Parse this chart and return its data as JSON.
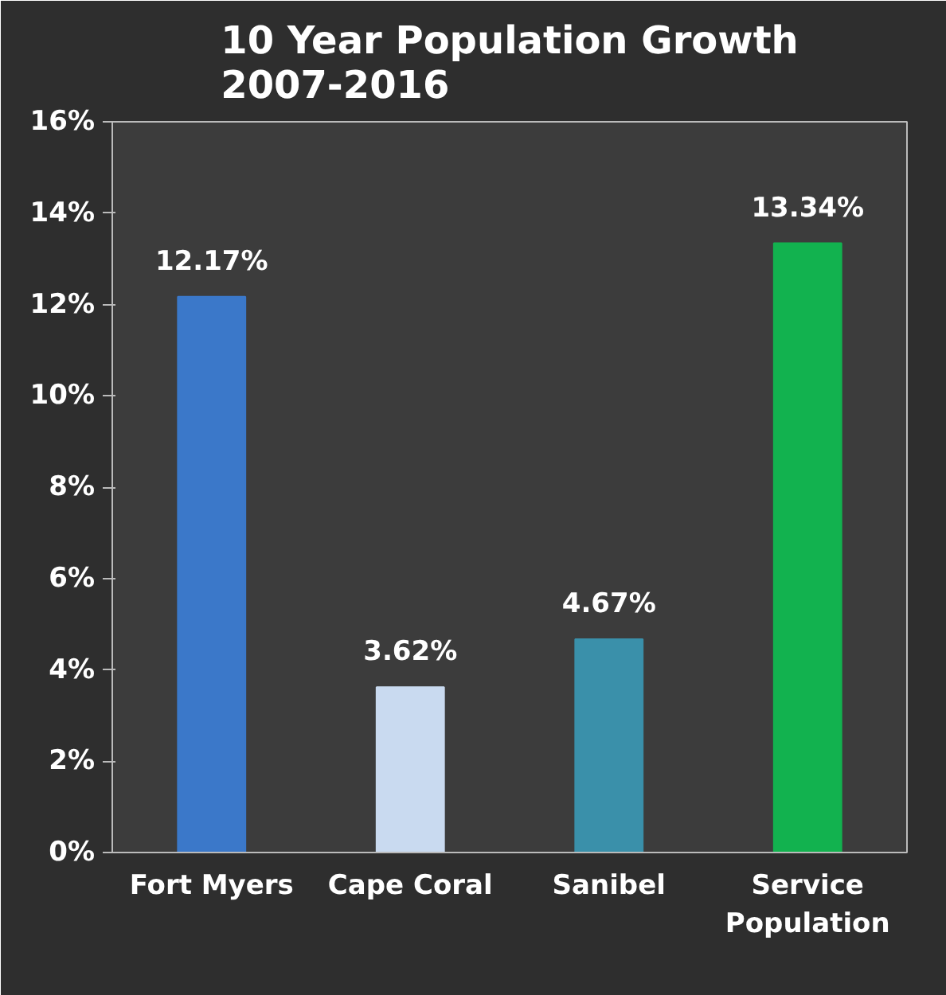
{
  "chart_data": {
    "type": "bar",
    "title": "10 Year Population Growth 2007-2016",
    "categories": [
      "Fort Myers",
      "Cape Coral",
      "Sanibel",
      "Service Population"
    ],
    "values": [
      12.17,
      3.62,
      4.67,
      13.34
    ],
    "colors": [
      "#3b78c9",
      "#c9daf0",
      "#3a90aa",
      "#12b24f"
    ],
    "value_labels": [
      "12.17%",
      "3.62%",
      "4.67%",
      "13.34%"
    ],
    "ylim": [
      0,
      16
    ],
    "yticks": [
      {
        "value": 0,
        "label": "0%"
      },
      {
        "value": 2,
        "label": "2%"
      },
      {
        "value": 4,
        "label": "4%"
      },
      {
        "value": 6,
        "label": "6%"
      },
      {
        "value": 8,
        "label": "8%"
      },
      {
        "value": 10,
        "label": "10%"
      },
      {
        "value": 12,
        "label": "12%"
      },
      {
        "value": 14,
        "label": "14%"
      },
      {
        "value": 16,
        "label": "16%"
      }
    ],
    "grid": false
  }
}
